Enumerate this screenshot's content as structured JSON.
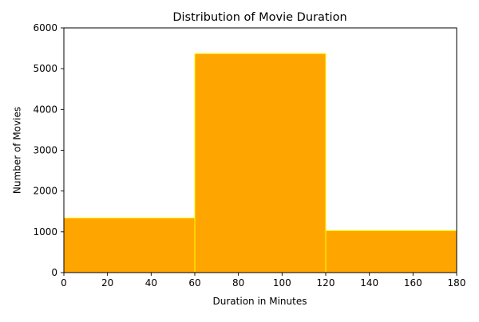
{
  "chart_data": {
    "type": "bar",
    "title": "Distribution of Movie Duration",
    "xlabel": "Duration in Minutes",
    "ylabel": "Number of Movies",
    "bins": [
      {
        "start": 0,
        "end": 60,
        "value": 1340
      },
      {
        "start": 60,
        "end": 120,
        "value": 5370
      },
      {
        "start": 120,
        "end": 180,
        "value": 1030
      }
    ],
    "xlim": [
      0,
      180
    ],
    "ylim": [
      0,
      6000
    ],
    "xticks": [
      0,
      20,
      40,
      60,
      80,
      100,
      120,
      140,
      160,
      180
    ],
    "yticks": [
      0,
      1000,
      2000,
      3000,
      4000,
      5000,
      6000
    ],
    "grid": false,
    "bar_color": "#FFA500",
    "edge_color": "#FFFF00"
  }
}
